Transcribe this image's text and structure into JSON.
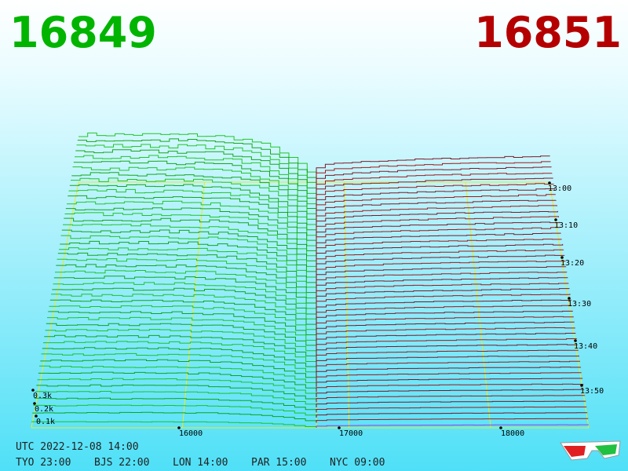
{
  "prices": {
    "bid": "16849",
    "ask": "16851"
  },
  "axis": {
    "price_ticks": [
      "16000",
      "17000",
      "18000"
    ],
    "time_ticks": [
      "13:00",
      "13:10",
      "13:20",
      "13:30",
      "13:40",
      "13:50"
    ],
    "volume_ticks": [
      "0.3k",
      "0.2k",
      "0.1k"
    ]
  },
  "clock": {
    "utc": "UTC 2022-12-08 14:00",
    "zones": [
      "TYO 23:00",
      "BJS 22:00",
      "LON 14:00",
      "PAR 15:00",
      "NYC 09:00"
    ]
  }
}
